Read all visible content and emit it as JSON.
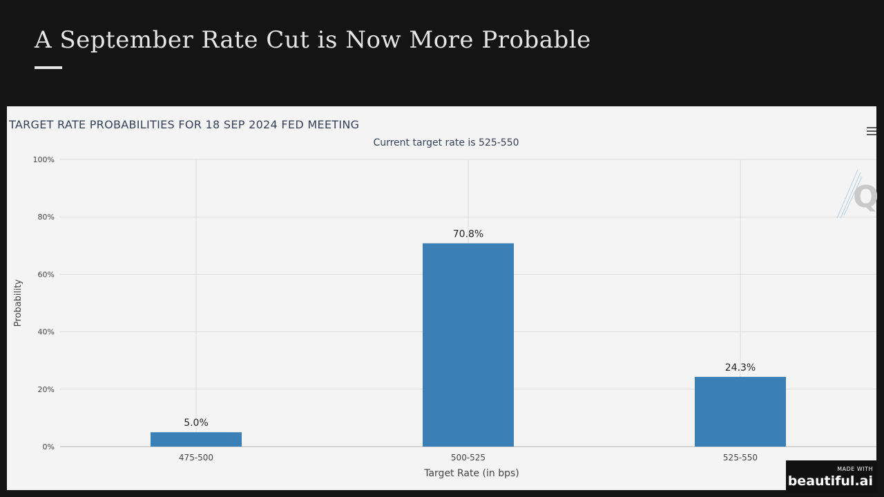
{
  "slide": {
    "title": "A September Rate Cut is Now More Probable"
  },
  "badge": {
    "small": "MADE WITH",
    "brand": "beautiful.ai"
  },
  "watermark_letter": "Q",
  "colors": {
    "bar": "#3a7fb5",
    "background": "#141414",
    "panel": "#f4f4f4",
    "grid": "#dcdcdc",
    "text": "#34405a"
  },
  "chart_data": {
    "type": "bar",
    "title": "TARGET RATE PROBABILITIES FOR 18 SEP 2024 FED MEETING",
    "subtitle": "Current target rate is 525-550",
    "xlabel": "Target Rate (in bps)",
    "ylabel": "Probability",
    "categories": [
      "475-500",
      "500-525",
      "525-550"
    ],
    "values": [
      5.0,
      70.8,
      24.3
    ],
    "value_labels": [
      "5.0%",
      "70.8%",
      "24.3%"
    ],
    "ylim": [
      0,
      100
    ],
    "yticks": [
      0,
      20,
      40,
      60,
      80,
      100
    ],
    "ytick_labels": [
      "0%",
      "20%",
      "40%",
      "60%",
      "80%",
      "100%"
    ],
    "grid": true,
    "legend": "none"
  }
}
